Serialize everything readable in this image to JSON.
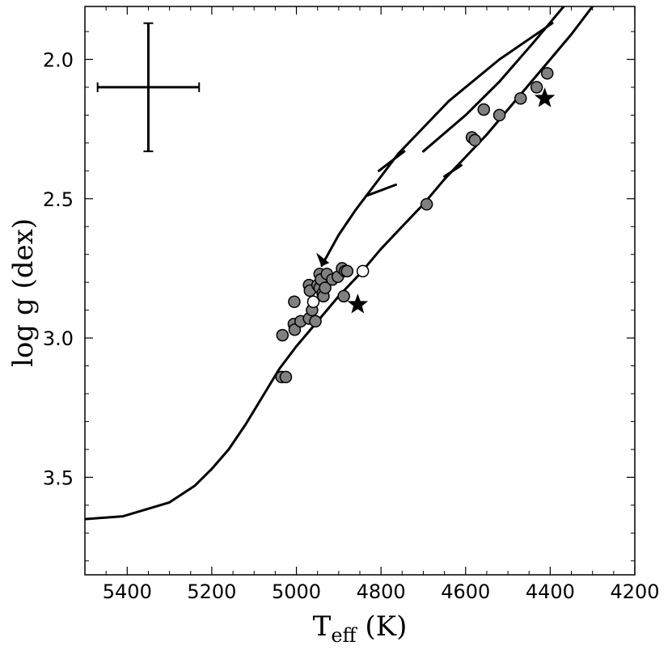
{
  "chart_data": {
    "type": "scatter",
    "title": "",
    "xlabel": {
      "main": "T",
      "sub": "eff",
      "units": " (K)"
    },
    "ylabel": "log g (dex)",
    "xlim": [
      5500,
      4200
    ],
    "ylim": [
      3.85,
      1.81
    ],
    "x_inverted": true,
    "y_inverted": true,
    "grid": false,
    "x_ticks": [
      5400,
      5200,
      5000,
      4800,
      4600,
      4400,
      4200
    ],
    "x_tick_labels": [
      "5400",
      "5200",
      "5000",
      "4800",
      "4600",
      "4400",
      "4200"
    ],
    "y_ticks": [
      2.0,
      2.5,
      3.0,
      3.5
    ],
    "y_tick_labels": [
      "2.0",
      "2.5",
      "3.0",
      "3.5"
    ],
    "error_bar": {
      "x": 5350,
      "y": 2.1,
      "x_err": 120,
      "y_err": 0.23
    },
    "isochrone": {
      "color": "#000000",
      "main": [
        [
          5500,
          3.65
        ],
        [
          5410,
          3.64
        ],
        [
          5300,
          3.59
        ],
        [
          5240,
          3.53
        ],
        [
          5200,
          3.47
        ],
        [
          5160,
          3.4
        ],
        [
          5120,
          3.31
        ],
        [
          5080,
          3.21
        ],
        [
          5040,
          3.11
        ],
        [
          5000,
          3.03
        ],
        [
          4950,
          2.94
        ],
        [
          4900,
          2.85
        ],
        [
          4850,
          2.77
        ],
        [
          4800,
          2.68
        ],
        [
          4750,
          2.6
        ],
        [
          4700,
          2.52
        ],
        [
          4650,
          2.43
        ],
        [
          4600,
          2.35
        ],
        [
          4550,
          2.27
        ],
        [
          4500,
          2.18
        ],
        [
          4450,
          2.09
        ],
        [
          4400,
          2.0
        ],
        [
          4350,
          1.91
        ],
        [
          4300,
          1.81
        ]
      ],
      "loop_upper": [
        [
          4368,
          1.81
        ],
        [
          4440,
          1.94
        ],
        [
          4520,
          2.08
        ],
        [
          4600,
          2.2
        ],
        [
          4700,
          2.33
        ]
      ],
      "loop_diag": [
        [
          4395,
          1.87
        ],
        [
          4520,
          2.0
        ],
        [
          4640,
          2.15
        ],
        [
          4760,
          2.34
        ],
        [
          4860,
          2.54
        ],
        [
          4900,
          2.63
        ],
        [
          4940,
          2.74
        ]
      ],
      "loop_segments": [
        [
          [
            4745,
            2.33
          ],
          [
            4805,
            2.4
          ]
        ],
        [
          [
            4765,
            2.45
          ],
          [
            4835,
            2.49
          ]
        ],
        [
          [
            4650,
            2.42
          ],
          [
            4610,
            2.38
          ]
        ]
      ],
      "arrowhead": [
        [
          4940,
          2.74
        ],
        [
          4950,
          2.7
        ],
        [
          4925,
          2.73
        ]
      ]
    },
    "series": [
      {
        "marker": "circle-filled",
        "color": "#808080",
        "points": [
          [
            5033,
            2.99
          ],
          [
            5035,
            3.14
          ],
          [
            5025,
            3.14
          ],
          [
            5005,
            2.87
          ],
          [
            5006,
            2.95
          ],
          [
            5004,
            2.97
          ],
          [
            4990,
            2.94
          ],
          [
            4970,
            2.81
          ],
          [
            4970,
            2.93
          ],
          [
            4968,
            2.83
          ],
          [
            4963,
            2.9
          ],
          [
            4955,
            2.94
          ],
          [
            4950,
            2.81
          ],
          [
            4945,
            2.77
          ],
          [
            4945,
            2.82
          ],
          [
            4942,
            2.79
          ],
          [
            4938,
            2.84
          ],
          [
            4936,
            2.85
          ],
          [
            4932,
            2.82
          ],
          [
            4928,
            2.77
          ],
          [
            4915,
            2.79
          ],
          [
            4902,
            2.78
          ],
          [
            4892,
            2.75
          ],
          [
            4885,
            2.76
          ],
          [
            4880,
            2.76
          ],
          [
            4888,
            2.85
          ],
          [
            4692,
            2.52
          ],
          [
            4585,
            2.28
          ],
          [
            4578,
            2.29
          ],
          [
            4557,
            2.18
          ],
          [
            4520,
            2.2
          ],
          [
            4470,
            2.14
          ],
          [
            4432,
            2.1
          ],
          [
            4407,
            2.05
          ]
        ]
      },
      {
        "marker": "circle-open",
        "color": "#ffffff",
        "points": [
          [
            4960,
            2.87
          ],
          [
            4843,
            2.76
          ]
        ]
      },
      {
        "marker": "star",
        "color": "#000000",
        "points": [
          [
            4855,
            2.88
          ],
          [
            4413,
            2.14
          ]
        ]
      }
    ]
  }
}
